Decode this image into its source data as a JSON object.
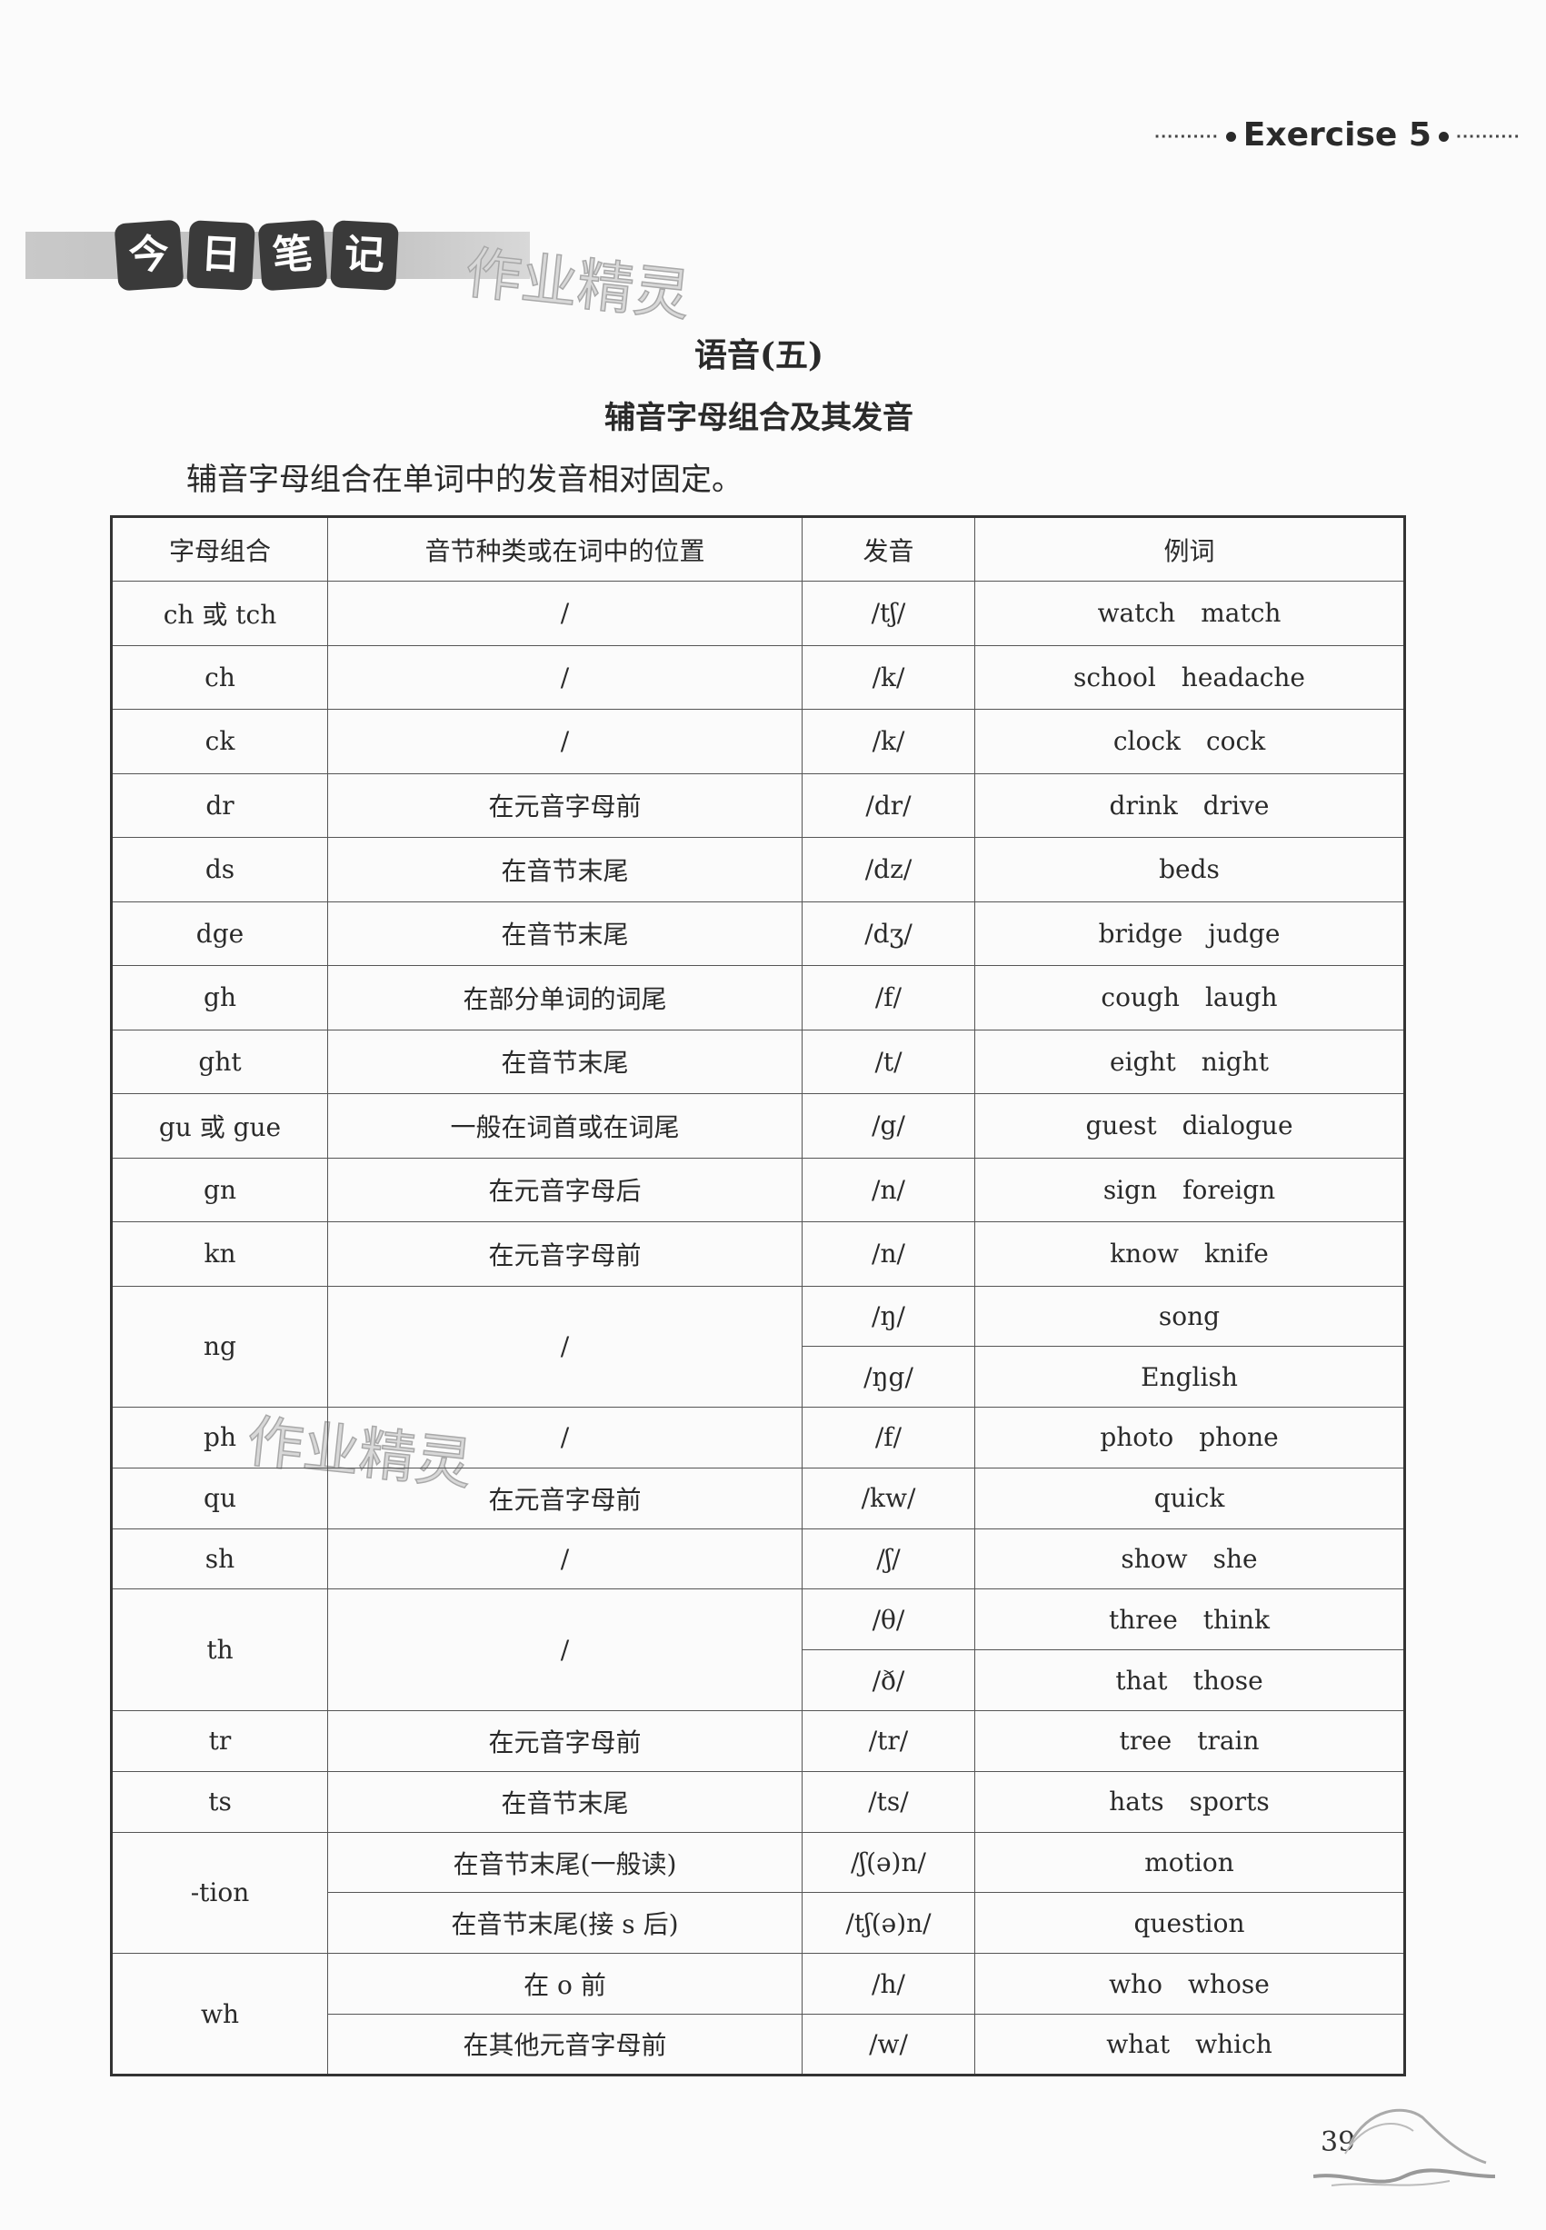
{
  "header": {
    "exercise": "Exercise 5"
  },
  "badge": {
    "chars": [
      "今",
      "日",
      "笔",
      "记"
    ]
  },
  "watermark": "作业精灵",
  "title": "语音(五)",
  "subtitle": "辅音字母组合及其发音",
  "intro": "辅音字母组合在单词中的发音相对固定。",
  "table": {
    "headers": [
      "字母组合",
      "音节种类或在词中的位置",
      "发音",
      "例词"
    ],
    "groups": [
      {
        "combo": "ch 或 tch",
        "rows": [
          {
            "position": "/",
            "phonetic": "/tʃ/",
            "examples": [
              "watch",
              "match"
            ]
          }
        ]
      },
      {
        "combo": "ch",
        "rows": [
          {
            "position": "/",
            "phonetic": "/k/",
            "examples": [
              "school",
              "headache"
            ]
          }
        ]
      },
      {
        "combo": "ck",
        "rows": [
          {
            "position": "/",
            "phonetic": "/k/",
            "examples": [
              "clock",
              "cock"
            ]
          }
        ]
      },
      {
        "combo": "dr",
        "rows": [
          {
            "position": "在元音字母前",
            "phonetic": "/dr/",
            "examples": [
              "drink",
              "drive"
            ]
          }
        ]
      },
      {
        "combo": "ds",
        "rows": [
          {
            "position": "在音节末尾",
            "phonetic": "/dz/",
            "examples": [
              "beds"
            ]
          }
        ]
      },
      {
        "combo": "dge",
        "rows": [
          {
            "position": "在音节末尾",
            "phonetic": "/dʒ/",
            "examples": [
              "bridge",
              "judge"
            ]
          }
        ]
      },
      {
        "combo": "gh",
        "rows": [
          {
            "position": "在部分单词的词尾",
            "phonetic": "/f/",
            "examples": [
              "cough",
              "laugh"
            ]
          }
        ]
      },
      {
        "combo": "ght",
        "rows": [
          {
            "position": "在音节末尾",
            "phonetic": "/t/",
            "examples": [
              "eight",
              "night"
            ]
          }
        ]
      },
      {
        "combo": "gu 或 gue",
        "rows": [
          {
            "position": "一般在词首或在词尾",
            "phonetic": "/g/",
            "examples": [
              "guest",
              "dialogue"
            ]
          }
        ]
      },
      {
        "combo": "gn",
        "rows": [
          {
            "position": "在元音字母后",
            "phonetic": "/n/",
            "examples": [
              "sign",
              "foreign"
            ]
          }
        ]
      },
      {
        "combo": "kn",
        "rows": [
          {
            "position": "在元音字母前",
            "phonetic": "/n/",
            "examples": [
              "know",
              "knife"
            ]
          }
        ]
      },
      {
        "combo": "ng",
        "position": "/",
        "rows": [
          {
            "phonetic": "/ŋ/",
            "examples": [
              "song"
            ]
          },
          {
            "phonetic": "/ŋg/",
            "examples": [
              "English"
            ]
          }
        ]
      },
      {
        "combo": "ph",
        "rows": [
          {
            "position": "/",
            "phonetic": "/f/",
            "examples": [
              "photo",
              "phone"
            ]
          }
        ]
      },
      {
        "combo": "qu",
        "rows": [
          {
            "position": "在元音字母前",
            "phonetic": "/kw/",
            "examples": [
              "quick"
            ]
          }
        ]
      },
      {
        "combo": "sh",
        "rows": [
          {
            "position": "/",
            "phonetic": "/ʃ/",
            "examples": [
              "show",
              "she"
            ]
          }
        ]
      },
      {
        "combo": "th",
        "position": "/",
        "rows": [
          {
            "phonetic": "/θ/",
            "examples": [
              "three",
              "think"
            ]
          },
          {
            "phonetic": "/ð/",
            "examples": [
              "that",
              "those"
            ]
          }
        ]
      },
      {
        "combo": "tr",
        "rows": [
          {
            "position": "在元音字母前",
            "phonetic": "/tr/",
            "examples": [
              "tree",
              "train"
            ]
          }
        ]
      },
      {
        "combo": "ts",
        "rows": [
          {
            "position": "在音节末尾",
            "phonetic": "/ts/",
            "examples": [
              "hats",
              "sports"
            ]
          }
        ]
      },
      {
        "combo": "-tion",
        "rows": [
          {
            "position": "在音节末尾(一般读)",
            "phonetic": "/ʃ(ə)n/",
            "examples": [
              "motion"
            ]
          },
          {
            "position": "在音节末尾(接 s 后)",
            "phonetic": "/tʃ(ə)n/",
            "examples": [
              "question"
            ]
          }
        ]
      },
      {
        "combo": "wh",
        "rows": [
          {
            "position": "在 o 前",
            "phonetic": "/h/",
            "examples": [
              "who",
              "whose"
            ]
          },
          {
            "position": "在其他元音字母前",
            "phonetic": "/w/",
            "examples": [
              "what",
              "which"
            ]
          }
        ]
      }
    ]
  },
  "page_number": "39"
}
